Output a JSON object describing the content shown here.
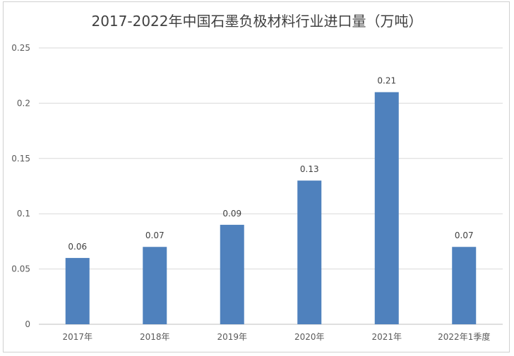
{
  "chart_data": {
    "type": "bar",
    "title": "2017-2022年中国石墨负极材料行业进口量（万吨）",
    "categories": [
      "2017年",
      "2018年",
      "2019年",
      "2020年",
      "2021年",
      "2022年1季度"
    ],
    "values": [
      0.06,
      0.07,
      0.09,
      0.13,
      0.21,
      0.07
    ],
    "data_labels": [
      "0.06",
      "0.07",
      "0.09",
      "0.13",
      "0.21",
      "0.07"
    ],
    "y_ticks": [
      "0",
      "0.05",
      "0.1",
      "0.15",
      "0.2",
      "0.25"
    ],
    "ylim": [
      0,
      0.25
    ],
    "grid": true,
    "legend": "none",
    "colors": {
      "bar": "#4f81bd",
      "grid": "#d9d9d9",
      "axis": "#bfbfbf"
    }
  }
}
